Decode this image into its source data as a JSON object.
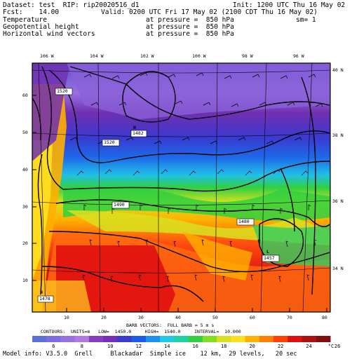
{
  "header": {
    "dataset": "Dataset: test  RIP: rip20020516_d1",
    "init": "Init: 1200 UTC Thu 16 May 02",
    "fcst": "Fcst:    14.00",
    "valid": "Valid: 0200 UTC Fri 17 May 02 (2100 CDT Thu 16 May 02)",
    "line3_left": "Temperature",
    "line3_mid": "at pressure =  850 hPa",
    "line3_right": "sm= 1",
    "line4_left": "Geopotential height",
    "line4_mid": "at pressure =  850 hPa",
    "line5_left": "Horizontal wind vectors",
    "line5_mid": "at pressure =  850 hPa"
  },
  "lon_labels": [
    "106 W",
    "104 W",
    "102 W",
    "100 W",
    "98 W",
    "96 W"
  ],
  "lat_labels": [
    "40 N",
    "38 N",
    "36 N",
    "34 N"
  ],
  "grid_y_labels": [
    "60",
    "50",
    "40",
    "30",
    "20",
    "10"
  ],
  "grid_x_labels": [
    "10",
    "20",
    "30",
    "40",
    "50",
    "60",
    "70",
    "80"
  ],
  "contour_labels": [
    "1520",
    "1482",
    "1520",
    "1490",
    "1480",
    "1457",
    "1478"
  ],
  "pressure_markers": [
    "H",
    "L",
    "H"
  ],
  "footer": {
    "barb_line": "BARB VECTORS:  FULL BARB = 5 m s",
    "contours_line": "CONTOURS:  UNITS=m   LOW=  1450.0     HIGH=  1540.0     INTERVAL=  10.000",
    "model_info": "Model info: V3.5.0  Grell     Blackadar  Simple ice    12 km,  29 levels,   20 sec"
  },
  "colorbar": {
    "labels": [
      "6",
      "8",
      "10",
      "12",
      "14",
      "16",
      "18",
      "20",
      "22",
      "24",
      "26",
      "°C"
    ],
    "colors": [
      "#5f6fd8",
      "#7b6ee0",
      "#9a6fe0",
      "#b078e2",
      "#8a3cc0",
      "#7630b8",
      "#3a3ad0",
      "#1e5ae8",
      "#1e90f0",
      "#22c8e8",
      "#20d0a0",
      "#30d040",
      "#80e020",
      "#d8e020",
      "#ffe020",
      "#ffb000",
      "#ff8000",
      "#ff4000",
      "#e01010",
      "#b01010",
      "#801010"
    ]
  }
}
